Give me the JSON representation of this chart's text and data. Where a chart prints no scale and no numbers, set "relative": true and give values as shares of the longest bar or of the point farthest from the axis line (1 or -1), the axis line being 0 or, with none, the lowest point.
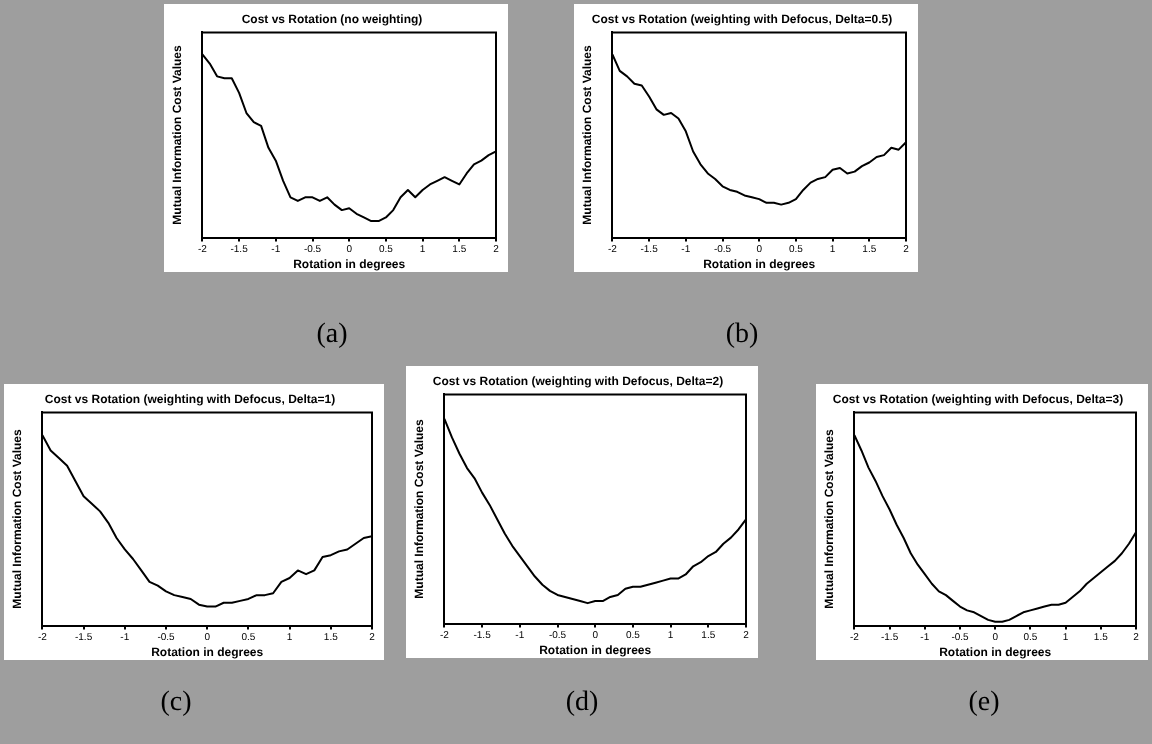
{
  "chart_data": [
    {
      "type": "line",
      "title": "Cost vs Rotation (no weighting)",
      "xlabel": "Rotation in degrees",
      "ylabel": "Mutual Information Cost Values",
      "relative": true,
      "legend": false,
      "grid": false,
      "marker": "none",
      "line_style": "solid",
      "xlim": [
        -2,
        2
      ],
      "xticks": [
        -2,
        -1.5,
        -1,
        -0.5,
        0,
        0.5,
        1,
        1.5,
        2
      ],
      "annotations": [
        "(a)"
      ],
      "x": [
        -2,
        -1.9,
        -1.8,
        -1.7,
        -1.6,
        -1.5,
        -1.4,
        -1.3,
        -1.2,
        -1.1,
        -1,
        -0.9,
        -0.8,
        -0.7,
        -0.6,
        -0.5,
        -0.4,
        -0.3,
        -0.2,
        -0.1,
        0,
        0.1,
        0.2,
        0.3,
        0.4,
        0.5,
        0.6,
        0.7,
        0.8,
        0.9,
        1,
        1.1,
        1.2,
        1.3,
        1.4,
        1.5,
        1.6,
        1.7,
        1.8,
        1.9,
        2
      ],
      "series": [
        {
          "color": "#000000",
          "values": [
            1,
            0.95,
            0.88,
            0.87,
            0.87,
            0.79,
            0.68,
            0.63,
            0.61,
            0.49,
            0.42,
            0.31,
            0.22,
            0.2,
            0.22,
            0.22,
            0.2,
            0.22,
            0.18,
            0.15,
            0.16,
            0.13,
            0.11,
            0.09,
            0.09,
            0.11,
            0.15,
            0.22,
            0.26,
            0.22,
            0.26,
            0.29,
            0.31,
            0.33,
            0.31,
            0.29,
            0.35,
            0.4,
            0.42,
            0.45,
            0.47
          ]
        }
      ]
    },
    {
      "type": "line",
      "title": "Cost vs Rotation (weighting with Defocus, Delta=0.5)",
      "xlabel": "Rotation in degrees",
      "ylabel": "Mutual Information Cost Values",
      "relative": true,
      "legend": false,
      "grid": false,
      "marker": "none",
      "line_style": "solid",
      "xlim": [
        -2,
        2
      ],
      "xticks": [
        -2,
        -1.5,
        -1,
        -0.5,
        0,
        0.5,
        1,
        1.5,
        2
      ],
      "annotations": [
        "(b)"
      ],
      "x": [
        -2,
        -1.9,
        -1.8,
        -1.7,
        -1.6,
        -1.5,
        -1.4,
        -1.3,
        -1.2,
        -1.1,
        -1,
        -0.9,
        -0.8,
        -0.7,
        -0.6,
        -0.5,
        -0.4,
        -0.3,
        -0.2,
        -0.1,
        0,
        0.1,
        0.2,
        0.3,
        0.4,
        0.5,
        0.6,
        0.7,
        0.8,
        0.9,
        1,
        1.1,
        1.2,
        1.3,
        1.4,
        1.5,
        1.6,
        1.7,
        1.8,
        1.9,
        2
      ],
      "series": [
        {
          "color": "#000000",
          "values": [
            1,
            0.91,
            0.88,
            0.84,
            0.83,
            0.77,
            0.7,
            0.67,
            0.68,
            0.65,
            0.58,
            0.47,
            0.4,
            0.35,
            0.32,
            0.28,
            0.26,
            0.25,
            0.23,
            0.22,
            0.21,
            0.19,
            0.19,
            0.18,
            0.19,
            0.21,
            0.26,
            0.3,
            0.32,
            0.33,
            0.37,
            0.38,
            0.35,
            0.36,
            0.39,
            0.41,
            0.44,
            0.45,
            0.49,
            0.48,
            0.52
          ]
        }
      ]
    },
    {
      "type": "line",
      "title": "Cost vs Rotation (weighting with Defocus, Delta=1)",
      "xlabel": "Rotation in degrees",
      "ylabel": "Mutual Information Cost Values",
      "relative": true,
      "legend": false,
      "grid": false,
      "marker": "none",
      "line_style": "solid",
      "xlim": [
        -2,
        2
      ],
      "xticks": [
        -2,
        -1.5,
        -1,
        -0.5,
        0,
        0.5,
        1,
        1.5,
        2
      ],
      "annotations": [
        "(c)"
      ],
      "x": [
        -2,
        -1.9,
        -1.8,
        -1.7,
        -1.6,
        -1.5,
        -1.4,
        -1.3,
        -1.2,
        -1.1,
        -1,
        -0.9,
        -0.8,
        -0.7,
        -0.6,
        -0.5,
        -0.4,
        -0.3,
        -0.2,
        -0.1,
        0,
        0.1,
        0.2,
        0.3,
        0.4,
        0.5,
        0.6,
        0.7,
        0.8,
        0.9,
        1,
        1.1,
        1.2,
        1.3,
        1.4,
        1.5,
        1.6,
        1.7,
        1.8,
        1.9,
        2
      ],
      "series": [
        {
          "color": "#000000",
          "values": [
            1,
            0.92,
            0.88,
            0.84,
            0.76,
            0.68,
            0.64,
            0.6,
            0.54,
            0.46,
            0.4,
            0.35,
            0.29,
            0.23,
            0.21,
            0.18,
            0.16,
            0.15,
            0.14,
            0.11,
            0.1,
            0.1,
            0.12,
            0.12,
            0.13,
            0.14,
            0.16,
            0.16,
            0.17,
            0.23,
            0.25,
            0.29,
            0.27,
            0.29,
            0.36,
            0.37,
            0.39,
            0.4,
            0.43,
            0.46,
            0.47
          ]
        }
      ]
    },
    {
      "type": "line",
      "title": "Cost vs Rotation (weighting with Defocus, Delta=2)",
      "xlabel": "Rotation in degrees",
      "ylabel": "Mutual Information Cost Values",
      "relative": true,
      "legend": false,
      "grid": false,
      "marker": "none",
      "line_style": "solid",
      "xlim": [
        -2,
        2
      ],
      "xticks": [
        -2,
        -1.5,
        -1,
        -0.5,
        0,
        0.5,
        1,
        1.5,
        2
      ],
      "annotations": [
        "(d)"
      ],
      "x": [
        -2,
        -1.9,
        -1.8,
        -1.7,
        -1.6,
        -1.5,
        -1.4,
        -1.3,
        -1.2,
        -1.1,
        -1,
        -0.9,
        -0.8,
        -0.7,
        -0.6,
        -0.5,
        -0.4,
        -0.3,
        -0.2,
        -0.1,
        0,
        0.1,
        0.2,
        0.3,
        0.4,
        0.5,
        0.6,
        0.7,
        0.8,
        0.9,
        1,
        1.1,
        1.2,
        1.3,
        1.4,
        1.5,
        1.6,
        1.7,
        1.8,
        1.9,
        2
      ],
      "series": [
        {
          "color": "#000000",
          "values": [
            1,
            0.91,
            0.83,
            0.76,
            0.71,
            0.64,
            0.58,
            0.51,
            0.44,
            0.38,
            0.33,
            0.28,
            0.23,
            0.19,
            0.16,
            0.14,
            0.13,
            0.12,
            0.11,
            0.1,
            0.11,
            0.11,
            0.13,
            0.14,
            0.17,
            0.18,
            0.18,
            0.19,
            0.2,
            0.21,
            0.22,
            0.22,
            0.24,
            0.28,
            0.3,
            0.33,
            0.35,
            0.39,
            0.42,
            0.46,
            0.51
          ]
        }
      ]
    },
    {
      "type": "line",
      "title": "Cost vs Rotation (weighting with Defocus, Delta=3)",
      "xlabel": "Rotation in degrees",
      "ylabel": "Mutual Information Cost Values",
      "relative": true,
      "legend": false,
      "grid": false,
      "marker": "none",
      "line_style": "solid",
      "xlim": [
        -2,
        2
      ],
      "xticks": [
        -2,
        -1.5,
        -1,
        -0.5,
        0,
        0.5,
        1,
        1.5,
        2
      ],
      "annotations": [
        "(e)"
      ],
      "x": [
        -2,
        -1.9,
        -1.8,
        -1.7,
        -1.6,
        -1.5,
        -1.4,
        -1.3,
        -1.2,
        -1.1,
        -1,
        -0.9,
        -0.8,
        -0.7,
        -0.6,
        -0.5,
        -0.4,
        -0.3,
        -0.2,
        -0.1,
        0,
        0.1,
        0.2,
        0.3,
        0.4,
        0.5,
        0.6,
        0.7,
        0.8,
        0.9,
        1,
        1.1,
        1.2,
        1.3,
        1.4,
        1.5,
        1.6,
        1.7,
        1.8,
        1.9,
        2
      ],
      "series": [
        {
          "color": "#000000",
          "values": [
            1,
            0.92,
            0.83,
            0.76,
            0.68,
            0.61,
            0.53,
            0.46,
            0.38,
            0.32,
            0.27,
            0.22,
            0.18,
            0.16,
            0.13,
            0.1,
            0.08,
            0.07,
            0.05,
            0.03,
            0.02,
            0.02,
            0.03,
            0.05,
            0.07,
            0.08,
            0.09,
            0.1,
            0.11,
            0.11,
            0.12,
            0.15,
            0.18,
            0.22,
            0.25,
            0.28,
            0.31,
            0.34,
            0.38,
            0.43,
            0.49
          ]
        }
      ]
    }
  ]
}
